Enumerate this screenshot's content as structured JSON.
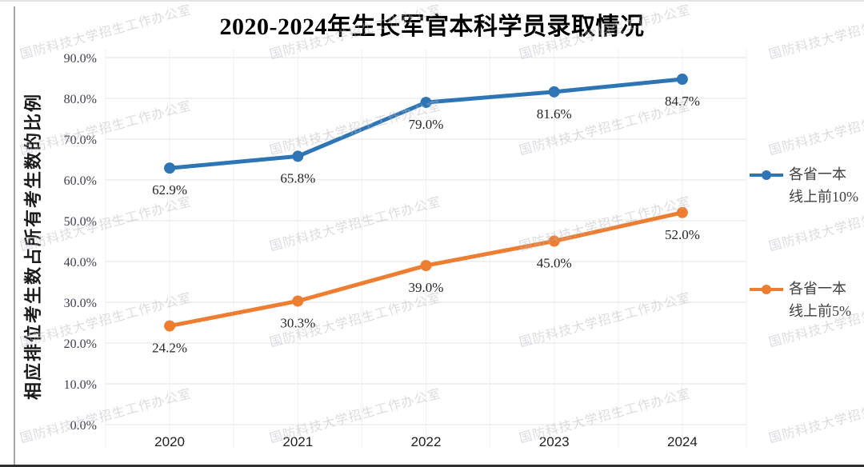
{
  "title": "2020-2024年生长军官本科学员录取情况",
  "watermark": {
    "text": "国防科技大学招生工作办公室"
  },
  "chart_data": {
    "type": "line",
    "title": "2020-2024年生长军官本科学员录取情况",
    "categories": [
      "2020",
      "2021",
      "2022",
      "2023",
      "2024"
    ],
    "series": [
      {
        "name": "各省一本线上前10%",
        "legend_lines": [
          "各省一本",
          "线上前10%"
        ],
        "color": "#2E75B6",
        "values": [
          62.9,
          65.8,
          79.0,
          81.6,
          84.7
        ],
        "labels": [
          "62.9%",
          "65.8%",
          "79.0%",
          "81.6%",
          "84.7%"
        ]
      },
      {
        "name": "各省一本线上前5%",
        "legend_lines": [
          "各省一本",
          "线上前5%"
        ],
        "color": "#ED7D31",
        "values": [
          24.2,
          30.3,
          39.0,
          45.0,
          52.0
        ],
        "labels": [
          "24.2%",
          "30.3%",
          "39.0%",
          "45.0%",
          "52.0%"
        ]
      }
    ],
    "xlabel": "",
    "ylabel": "相应排位考生数占所有考生数的比例",
    "ylim": [
      0,
      90
    ],
    "ytick_step": 10,
    "yticks": [
      "0.0%",
      "10.0%",
      "20.0%",
      "30.0%",
      "40.0%",
      "50.0%",
      "60.0%",
      "70.0%",
      "80.0%",
      "90.0%"
    ],
    "grid": true,
    "legend_position": "right"
  },
  "colors": {
    "grid_h": "#e3e3e3",
    "grid_v": "#f0f0f0",
    "axis_text": "#3e3e4e",
    "series_blue": "#2E75B6",
    "series_orange": "#ED7D31",
    "watermark": "#b9b9c2"
  }
}
